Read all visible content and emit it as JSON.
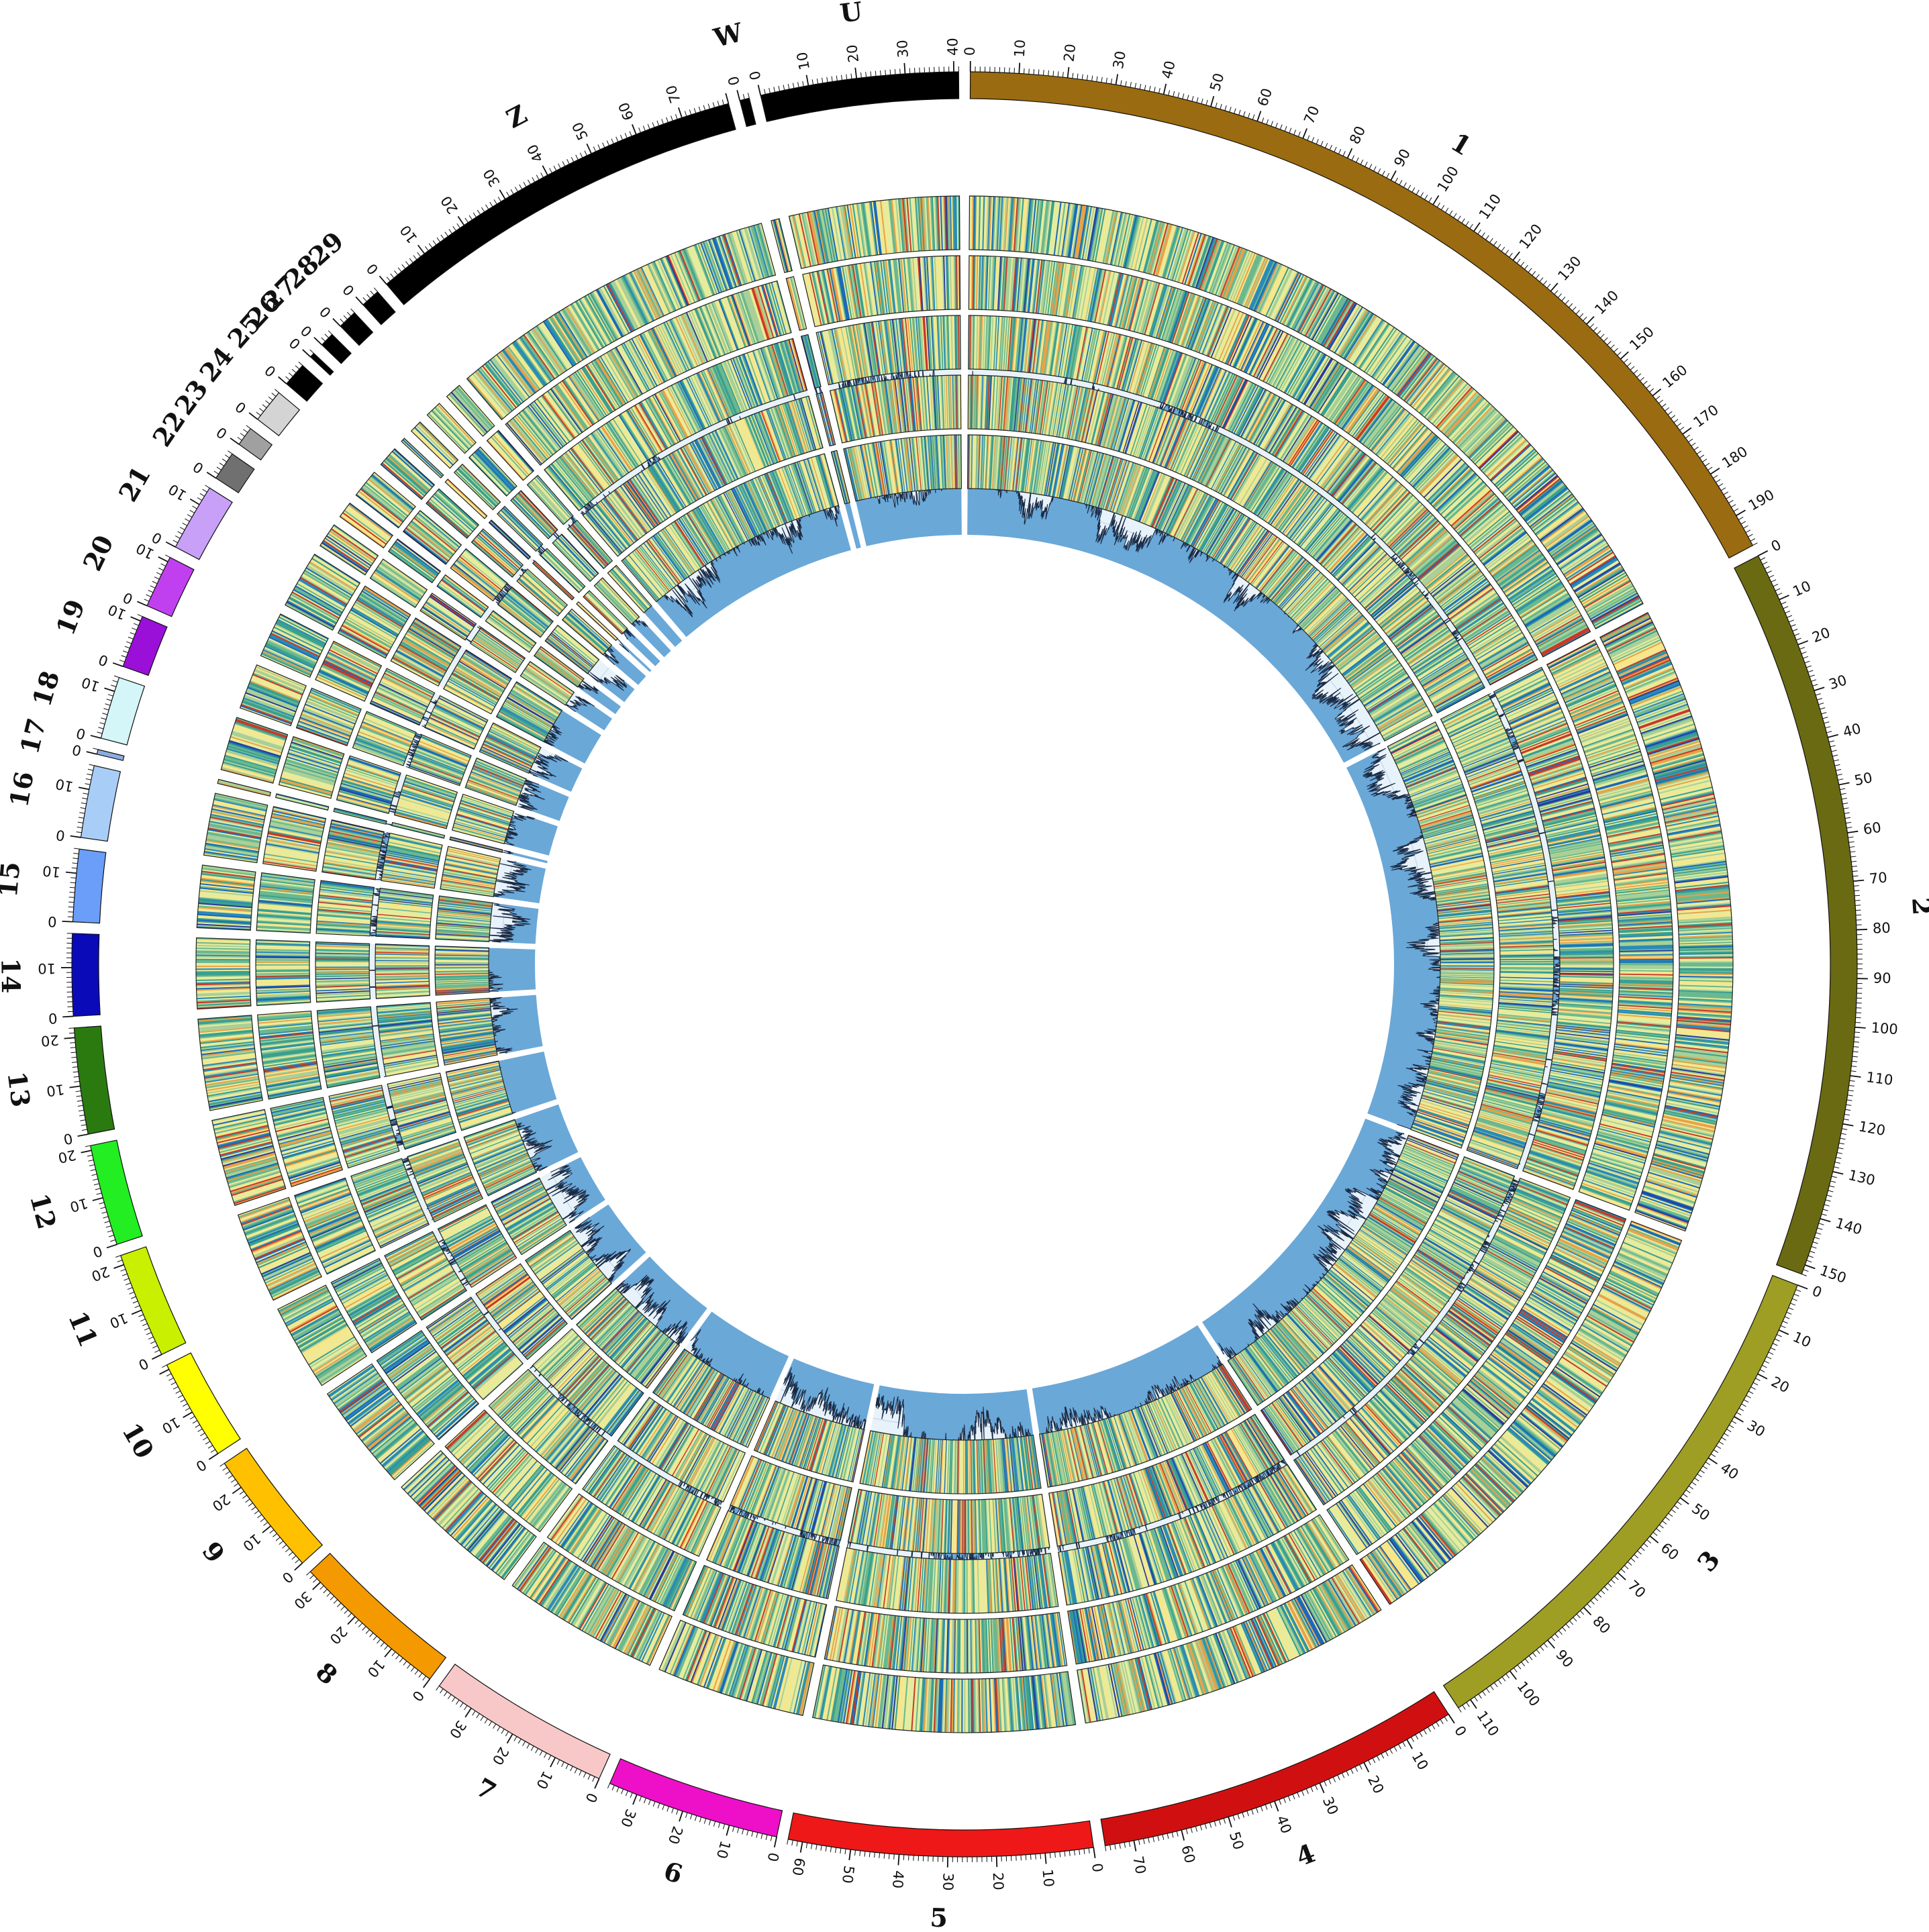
{
  "chromosomes": [
    {
      "label": "1",
      "length": 197,
      "color": "#9a6b10",
      "ticks": [
        "0",
        "10",
        "20",
        "30",
        "40",
        "50",
        "60",
        "70",
        "80",
        "90",
        "100",
        "110",
        "120",
        "130",
        "140",
        "150",
        "160",
        "170",
        "180",
        "190"
      ]
    },
    {
      "label": "2",
      "length": 152,
      "color": "#6a6a12",
      "ticks": [
        "0",
        "10",
        "20",
        "30",
        "40",
        "50",
        "60",
        "70",
        "80",
        "90",
        "100",
        "110",
        "120",
        "130",
        "140",
        "150"
      ]
    },
    {
      "label": "3",
      "length": 113,
      "color": "#9e9e25",
      "ticks": [
        "0",
        "10",
        "20",
        "30",
        "40",
        "50",
        "60",
        "70",
        "80",
        "90",
        "100",
        "110"
      ]
    },
    {
      "label": "4",
      "length": 76,
      "color": "#d01010",
      "ticks": [
        "0",
        "10",
        "20",
        "30",
        "40",
        "50",
        "60",
        "70"
      ]
    },
    {
      "label": "5",
      "length": 63,
      "color": "#ee1818",
      "ticks": [
        "0",
        "10",
        "20",
        "30",
        "40",
        "50",
        "60"
      ]
    },
    {
      "label": "6",
      "length": 36,
      "color": "#ee10c8",
      "ticks": [
        "0",
        "10",
        "20",
        "30"
      ]
    },
    {
      "label": "7",
      "length": 38,
      "color": "#f8c8c8",
      "ticks": [
        "0",
        "10",
        "20",
        "30"
      ]
    },
    {
      "label": "8",
      "length": 33,
      "color": "#f49a00",
      "ticks": [
        "0",
        "10",
        "20",
        "30"
      ]
    },
    {
      "label": "9",
      "length": 26,
      "color": "#ffc000",
      "ticks": [
        "0",
        "10",
        "20"
      ]
    },
    {
      "label": "10",
      "length": 21,
      "color": "#ffff00",
      "ticks": [
        "0",
        "10"
      ]
    },
    {
      "label": "11",
      "length": 22,
      "color": "#c8f000",
      "ticks": [
        "0",
        "10",
        "20"
      ]
    },
    {
      "label": "12",
      "length": 21,
      "color": "#22ee22",
      "ticks": [
        "0",
        "10",
        "20"
      ]
    },
    {
      "label": "13",
      "length": 22,
      "color": "#2a7a10",
      "ticks": [
        "0",
        "10",
        "20"
      ]
    },
    {
      "label": "14",
      "length": 17,
      "color": "#0a0ab8",
      "ticks": [
        "0",
        "10"
      ]
    },
    {
      "label": "15",
      "length": 15,
      "color": "#6a9ef8",
      "ticks": [
        "0",
        "10"
      ]
    },
    {
      "label": "16",
      "length": 15,
      "color": "#a8cef8",
      "ticks": [
        "0",
        "10"
      ]
    },
    {
      "label": "17",
      "length": 1,
      "color": "#8aaee0",
      "ticks": [
        "0"
      ]
    },
    {
      "label": "18",
      "length": 13,
      "color": "#d4f6f8",
      "ticks": [
        "0",
        "10"
      ]
    },
    {
      "label": "19",
      "length": 11,
      "color": "#9a10d8",
      "ticks": [
        "0",
        "10"
      ]
    },
    {
      "label": "20",
      "length": 11,
      "color": "#c040f0",
      "ticks": [
        "0",
        "10"
      ]
    },
    {
      "label": "21",
      "length": 14,
      "color": "#c8a0f8",
      "ticks": [
        "0",
        "10"
      ]
    },
    {
      "label": "22",
      "length": 6,
      "color": "#707070",
      "ticks": [
        "0"
      ]
    },
    {
      "label": "23",
      "length": 4,
      "color": "#a0a0a0",
      "ticks": [
        "0"
      ]
    },
    {
      "label": "24",
      "length": 7,
      "color": "#d4d4d4",
      "ticks": [
        "0"
      ]
    },
    {
      "label": "25",
      "length": 5,
      "color": "#000000",
      "ticks": [
        "0"
      ]
    },
    {
      "label": "26",
      "length": 1,
      "color": "#000000",
      "ticks": [
        "0"
      ]
    },
    {
      "label": "27",
      "length": 3,
      "color": "#000000",
      "ticks": [
        "0"
      ]
    },
    {
      "label": "28",
      "length": 4,
      "color": "#000000",
      "ticks": [
        "0"
      ]
    },
    {
      "label": "29",
      "length": 4,
      "color": "#000000",
      "ticks": [
        "0"
      ]
    },
    {
      "label": "Z",
      "length": 80,
      "color": "#000000",
      "ticks": [
        "0",
        "10",
        "20",
        "30",
        "40",
        "50",
        "60",
        "70"
      ]
    },
    {
      "label": "W",
      "length": 2,
      "color": "#000000",
      "ticks": [
        "0"
      ]
    },
    {
      "label": "U",
      "length": 41,
      "color": "#000000",
      "ticks": [
        "0",
        "10",
        "20",
        "30",
        "40"
      ]
    }
  ],
  "heatmap_palette": [
    "#2a3a9a",
    "#1a6ab8",
    "#2a8ab8",
    "#3aa090",
    "#6ab890",
    "#a8d098",
    "#e6ec9e",
    "#f8e68a",
    "#e8a24a",
    "#c83a2a"
  ],
  "heatmap_track_count": 5,
  "histogram_track_count": 2,
  "histogram_bar_color": "#6aa8d8",
  "histogram_line_color": "#1a2a44",
  "histogram_background": "#e8f2fa"
}
